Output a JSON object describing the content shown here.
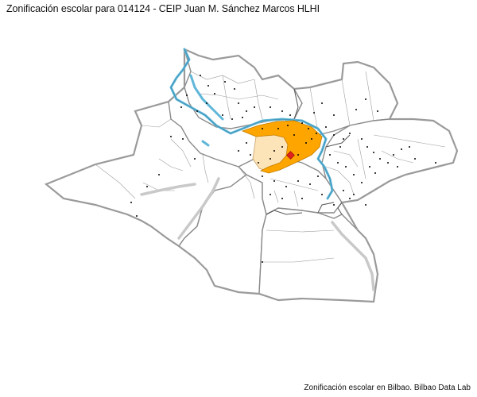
{
  "title": "Zonificación escolar para 014124 - CEIP Juan M. Sánchez Marcos HLHI",
  "credit": "Zonificación escolar en Bilbao. Bilbao Data Lab",
  "colors": {
    "zone_primary": "#ffa500",
    "zone_secondary": "#fde3b8",
    "school_marker": "#e0201b",
    "river": "#5fb7d9",
    "boundary": "#8a8a8a",
    "railway": "#c9c9c9",
    "point": "#000000"
  },
  "icons": {
    "school": "school-marker-icon"
  }
}
